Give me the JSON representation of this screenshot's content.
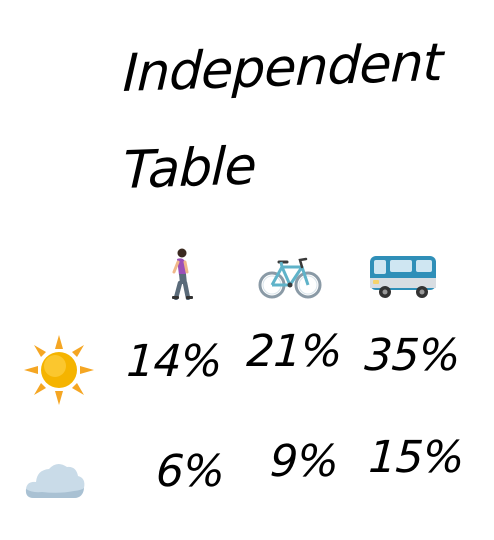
{
  "title": {
    "line1": "Independent",
    "line2": "Table"
  },
  "columns": [
    {
      "icon": "person-walking-icon"
    },
    {
      "icon": "bicycle-icon"
    },
    {
      "icon": "bus-icon"
    }
  ],
  "rows": [
    {
      "icon": "sun-icon",
      "values": [
        "14%",
        "21%",
        "35%"
      ]
    },
    {
      "icon": "cloud-icon",
      "values": [
        "6%",
        "9%",
        "15%"
      ]
    }
  ],
  "colors": {
    "ink": "#000000",
    "sun": "#f5b400",
    "bike": "#5fb3c9",
    "bus": "#2f8fb8",
    "cloud": "#c9dbe8"
  }
}
